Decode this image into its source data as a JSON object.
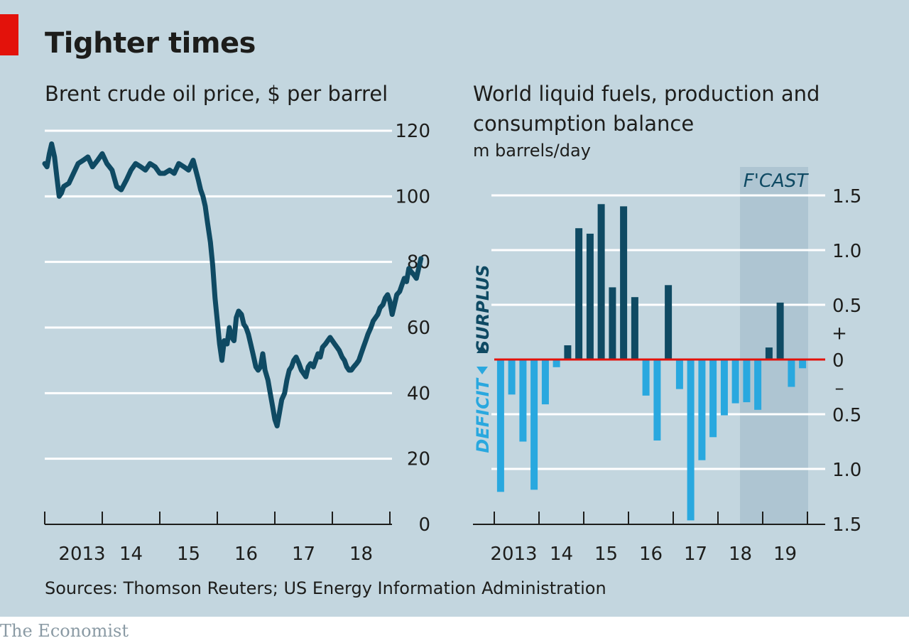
{
  "title": "Tighter times",
  "source": "Sources: Thomson Reuters; US Energy Information Administration",
  "brand": "The Economist",
  "colors": {
    "background": "#c3d6df",
    "price_line": "#0f4a63",
    "surplus": "#0f4a63",
    "deficit": "#29a8df",
    "zero_line": "#e3120b",
    "forecast_band": "#aec5d2",
    "accent": "#e3120b"
  },
  "chart_data": [
    {
      "type": "line",
      "title": "Brent crude oil price, $ per barrel",
      "ylim": [
        0,
        120
      ],
      "y_ticks": [
        "0",
        "20",
        "40",
        "60",
        "80",
        "100",
        "120"
      ],
      "x_tick_labels": [
        "2013",
        "14",
        "15",
        "16",
        "17",
        "18"
      ],
      "grid": true,
      "series": [
        {
          "values_x_years": [
            2012.0,
            2012.04,
            2012.08,
            2012.12,
            2012.17,
            2012.21,
            2012.25,
            2012.29,
            2012.33,
            2012.42,
            2012.5,
            2012.58,
            2012.67,
            2012.75,
            2012.83,
            2012.92,
            2013.0,
            2013.08,
            2013.17,
            2013.25,
            2013.33,
            2013.42,
            2013.5,
            2013.58,
            2013.67,
            2013.75,
            2013.83,
            2013.92,
            2014.0,
            2014.08,
            2014.17,
            2014.25,
            2014.33,
            2014.42,
            2014.5,
            2014.58,
            2014.67,
            2014.71,
            2014.75,
            2014.79,
            2014.83,
            2014.88,
            2014.92,
            2014.96,
            2015.0,
            2015.04,
            2015.08,
            2015.12,
            2015.17,
            2015.21,
            2015.25,
            2015.29,
            2015.33,
            2015.37,
            2015.42,
            2015.46,
            2015.5,
            2015.54,
            2015.58,
            2015.62,
            2015.67,
            2015.71,
            2015.75,
            2015.79,
            2015.83,
            2015.88,
            2015.92,
            2015.96,
            2016.0,
            2016.04,
            2016.08,
            2016.12,
            2016.17,
            2016.21,
            2016.25,
            2016.29,
            2016.33,
            2016.37,
            2016.42,
            2016.46,
            2016.5,
            2016.54,
            2016.58,
            2016.62,
            2016.67,
            2016.71,
            2016.75,
            2016.79,
            2016.83,
            2016.88,
            2016.92,
            2016.96,
            2017.0,
            2017.04,
            2017.08,
            2017.12,
            2017.17,
            2017.21,
            2017.25,
            2017.29,
            2017.33,
            2017.37,
            2017.42,
            2017.46,
            2017.5,
            2017.54,
            2017.58,
            2017.62,
            2017.67,
            2017.71,
            2017.75,
            2017.79,
            2017.83,
            2017.88,
            2017.92,
            2017.96,
            2018.0,
            2018.04,
            2018.08,
            2018.12,
            2018.17,
            2018.21,
            2018.25,
            2018.29,
            2018.33,
            2018.37,
            2018.42,
            2018.46,
            2018.5,
            2018.54
          ],
          "values": [
            110,
            109,
            113,
            116,
            112,
            106,
            100,
            101,
            103,
            104,
            107,
            110,
            111,
            112,
            109,
            111,
            113,
            110,
            108,
            103,
            102,
            105,
            108,
            110,
            109,
            108,
            110,
            109,
            107,
            107,
            108,
            107,
            110,
            109,
            108,
            111,
            105,
            102,
            100,
            97,
            92,
            86,
            79,
            69,
            62,
            55,
            50,
            56,
            55,
            60,
            57,
            56,
            63,
            65,
            64,
            61,
            60,
            58,
            55,
            52,
            48,
            47,
            48,
            52,
            47,
            44,
            40,
            36,
            32,
            30,
            34,
            38,
            40,
            44,
            47,
            48,
            50,
            51,
            49,
            47,
            46,
            45,
            48,
            49,
            48,
            50,
            52,
            51,
            54,
            55,
            56,
            57,
            56,
            55,
            54,
            53,
            51,
            50,
            48,
            47,
            47,
            48,
            49,
            50,
            52,
            54,
            56,
            58,
            60,
            62,
            63,
            64,
            66,
            67,
            69,
            70,
            68,
            64,
            67,
            70,
            71,
            73,
            75,
            74,
            78,
            77,
            76,
            75,
            78,
            81
          ]
        }
      ]
    },
    {
      "type": "bar",
      "title": "World liquid fuels, production and consumption balance",
      "ylabel": "m barrels/day",
      "ylim": [
        -1.5,
        1.5
      ],
      "y_ticks": [
        "1.5",
        "1.0",
        "0.5",
        "0",
        "0.5",
        "1.0",
        "1.5"
      ],
      "y_signs": [
        "+",
        "–"
      ],
      "x_tick_labels": [
        "2013",
        "14",
        "15",
        "16",
        "17",
        "18",
        "19"
      ],
      "annotations": {
        "surplus": "SURPLUS",
        "deficit": "DEFICIT",
        "forecast": "F'CAST"
      },
      "forecast_start_quarter": "2018Q3",
      "grid": true,
      "categories": [
        "2013Q1",
        "2013Q2",
        "2013Q3",
        "2013Q4",
        "2014Q1",
        "2014Q2",
        "2014Q3",
        "2014Q4",
        "2015Q1",
        "2015Q2",
        "2015Q3",
        "2015Q4",
        "2016Q1",
        "2016Q2",
        "2016Q3",
        "2016Q4",
        "2017Q1",
        "2017Q2",
        "2017Q3",
        "2017Q4",
        "2018Q1",
        "2018Q2",
        "2018Q3",
        "2018Q4",
        "2019Q1",
        "2019Q2",
        "2019Q3",
        "2019Q4"
      ],
      "values": [
        -1.21,
        -0.32,
        -0.75,
        -1.19,
        -0.41,
        -0.07,
        0.13,
        1.2,
        1.15,
        1.42,
        0.66,
        1.4,
        0.57,
        -0.33,
        -0.74,
        0.68,
        -0.27,
        -1.47,
        -0.92,
        -0.71,
        -0.51,
        -0.4,
        -0.39,
        -0.46,
        0.11,
        0.52,
        -0.25,
        -0.08
      ]
    }
  ]
}
